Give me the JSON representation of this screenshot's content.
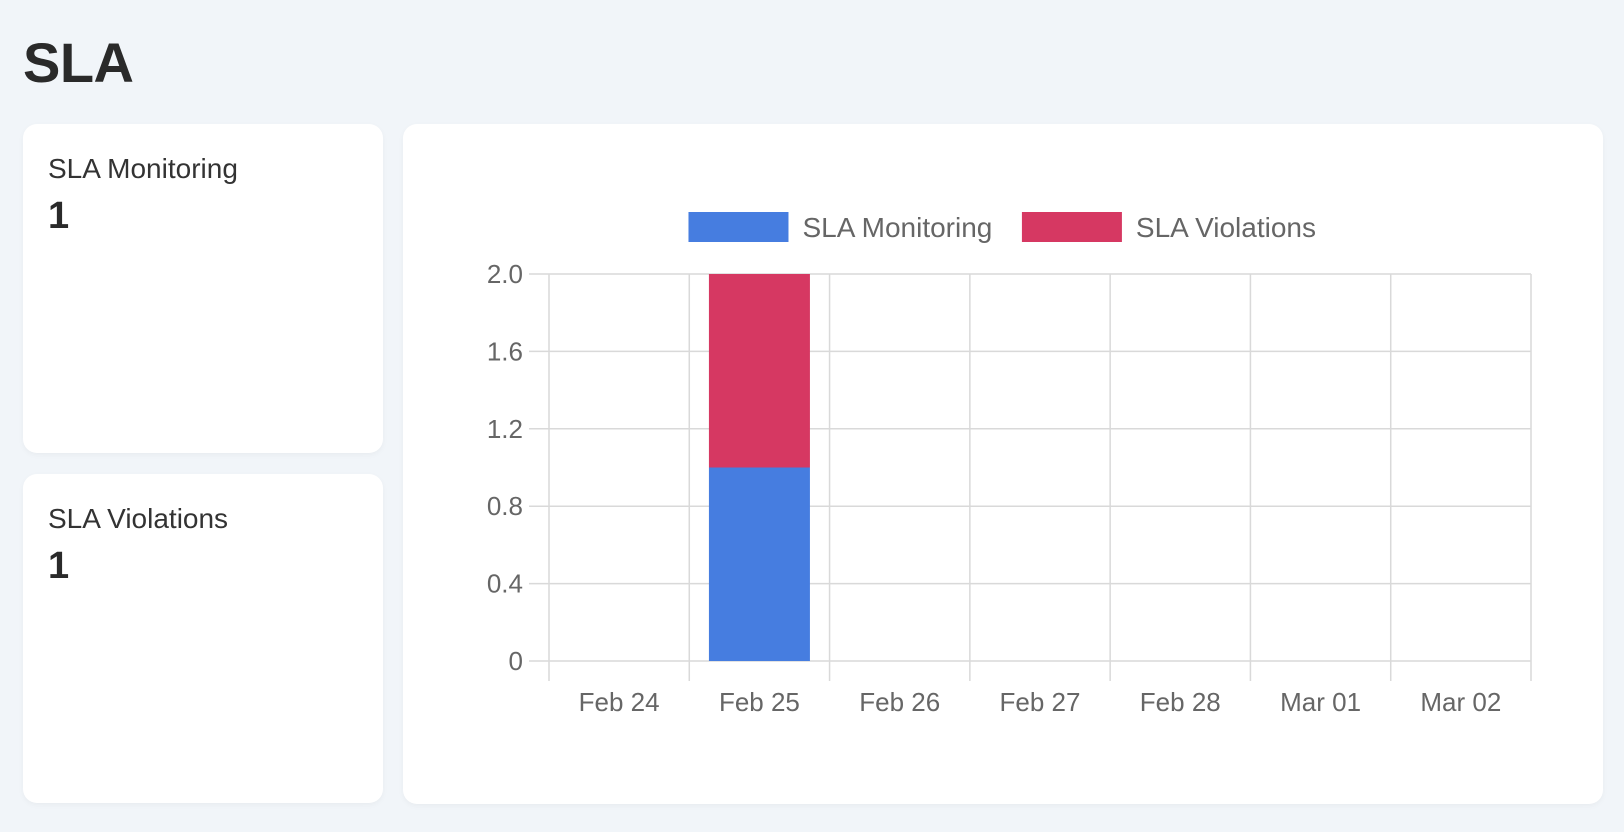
{
  "page": {
    "title": "SLA"
  },
  "cards": [
    {
      "label": "SLA Monitoring",
      "value": "1"
    },
    {
      "label": "SLA Violations",
      "value": "1"
    }
  ],
  "colors": {
    "monitoring": "#467de0",
    "violations": "#d63862",
    "grid": "#d9d9d9",
    "tick_text": "#666666"
  },
  "chart_data": {
    "type": "bar",
    "stacked": true,
    "categories": [
      "Feb 24",
      "Feb 25",
      "Feb 26",
      "Feb 27",
      "Feb 28",
      "Mar 01",
      "Mar 02"
    ],
    "series": [
      {
        "name": "SLA Monitoring",
        "values": [
          0,
          1,
          0,
          0,
          0,
          0,
          0
        ]
      },
      {
        "name": "SLA Violations",
        "values": [
          0,
          1,
          0,
          0,
          0,
          0,
          0
        ]
      }
    ],
    "y_ticks": [
      "0",
      "0.4",
      "0.8",
      "1.2",
      "1.6",
      "2.0"
    ],
    "ylim": [
      0,
      2
    ],
    "title": "",
    "xlabel": "",
    "ylabel": "",
    "legend": "top",
    "grid": true
  }
}
